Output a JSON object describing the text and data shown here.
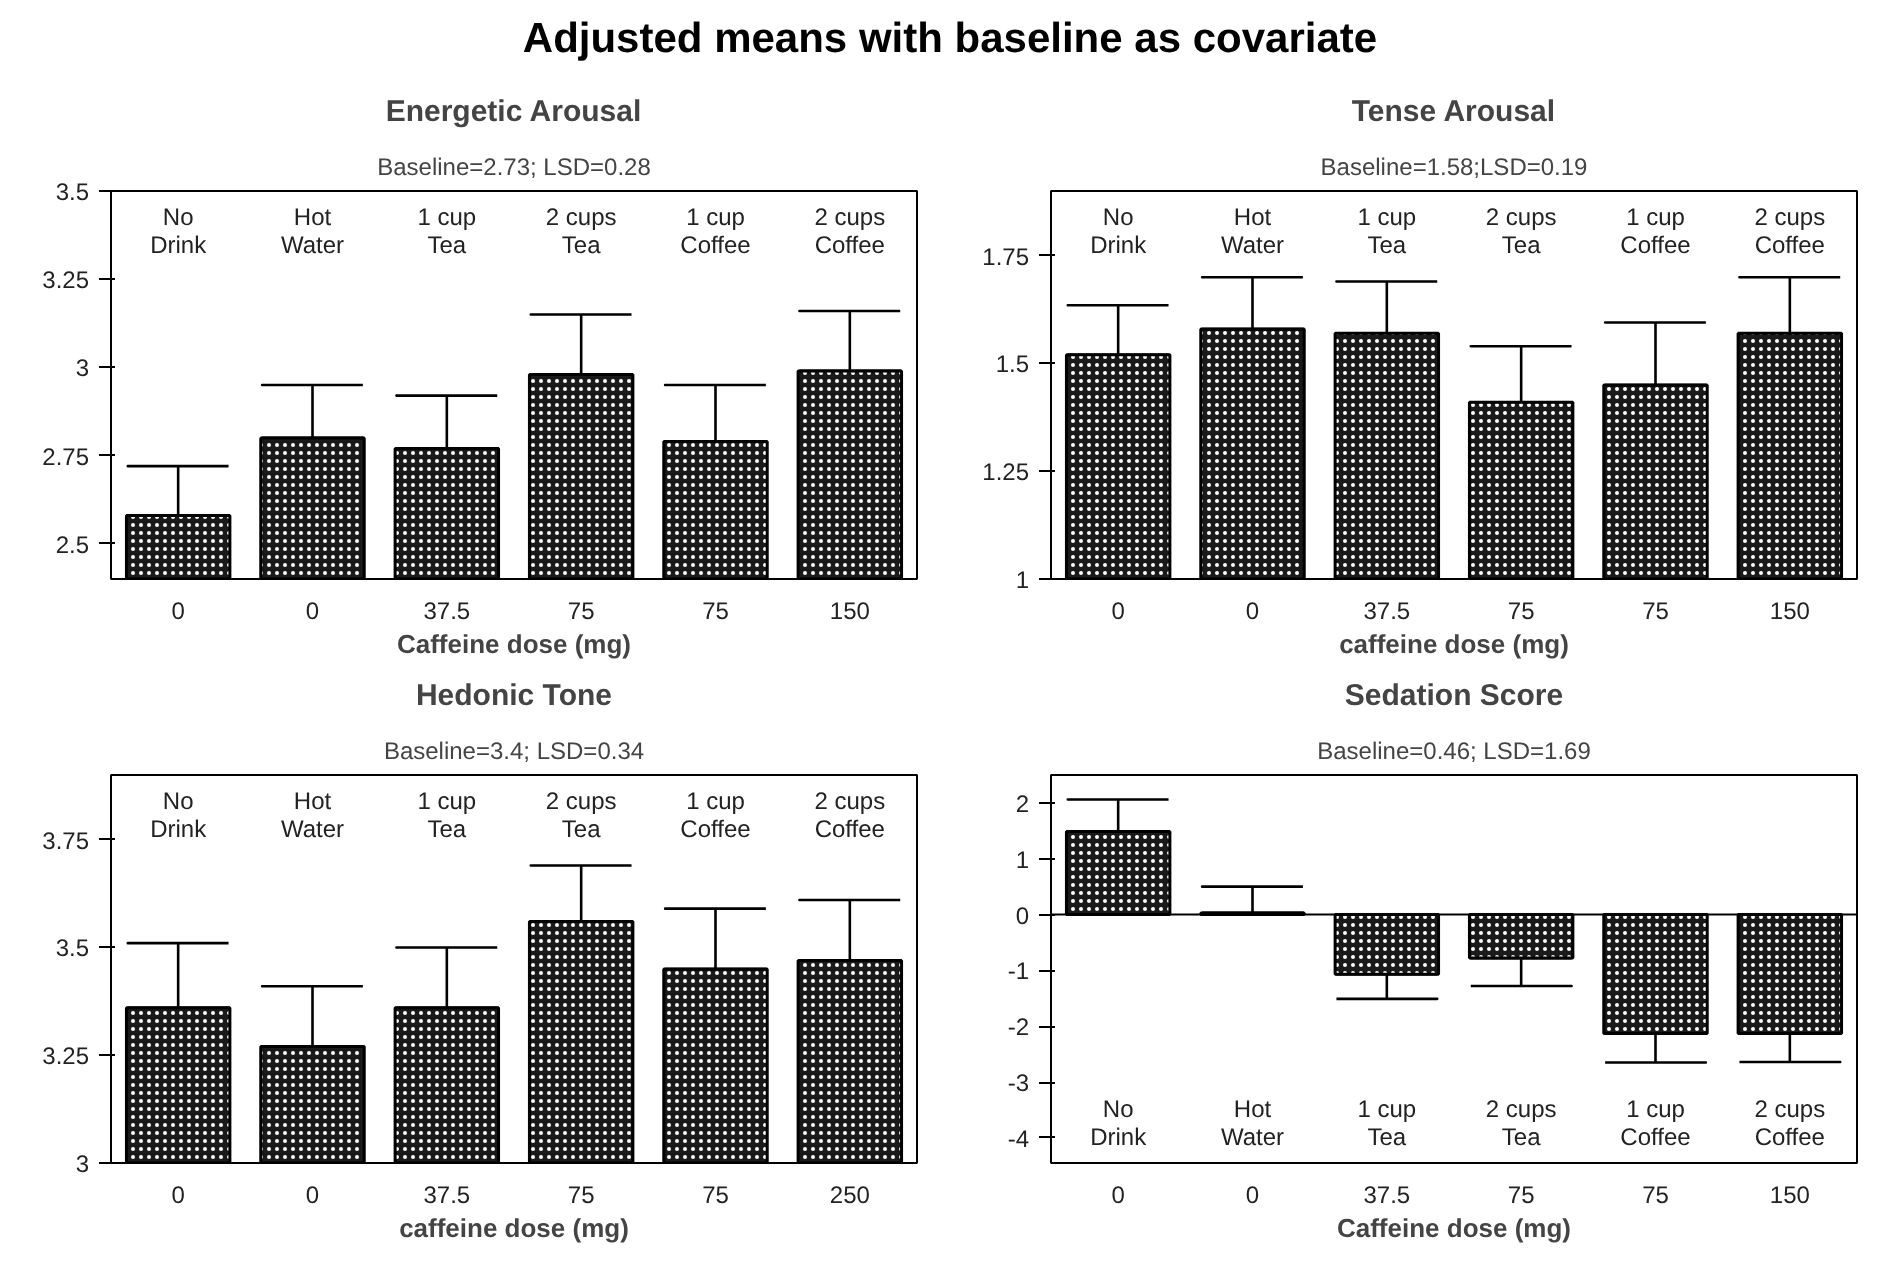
{
  "chart_data": [
    {
      "type": "bar",
      "title": "Energetic Arousal",
      "subtitle": "Baseline=2.73; LSD=0.28",
      "xlabel": "Caffeine dose (mg)",
      "categories": [
        "0",
        "0",
        "37.5",
        "75",
        "75",
        "150"
      ],
      "color": "#1a1a1a",
      "values": [
        2.58,
        2.8,
        2.77,
        2.98,
        2.79,
        2.99
      ],
      "errors": [
        [
          2.58,
          2.72
        ],
        [
          2.8,
          2.95
        ],
        [
          2.77,
          2.92
        ],
        [
          2.98,
          3.15
        ],
        [
          2.79,
          2.95
        ],
        [
          2.99,
          3.16
        ]
      ],
      "ylim": [
        2.4,
        3.5
      ],
      "yticks": [
        2.5,
        2.75,
        3,
        3.25,
        3.5
      ],
      "annotations": [
        "No\nDrink",
        "Hot\nWater",
        "1 cup\nTea",
        "2 cups\nTea",
        "1 cup\nCoffee",
        "2 cups\nCoffee",
        "Adjusted means with baseline as covariate"
      ]
    },
    {
      "type": "bar",
      "title": "Tense Arousal",
      "subtitle": "Baseline=1.58;LSD=0.19",
      "xlabel": "caffeine dose (mg)",
      "categories": [
        "0",
        "0",
        "37.5",
        "75",
        "75",
        "150"
      ],
      "color": "#1a1a1a",
      "values": [
        1.52,
        1.58,
        1.57,
        1.41,
        1.45,
        1.57
      ],
      "errors": [
        [
          1.52,
          1.635
        ],
        [
          1.58,
          1.7
        ],
        [
          1.57,
          1.69
        ],
        [
          1.41,
          1.54
        ],
        [
          1.45,
          1.595
        ],
        [
          1.57,
          1.7
        ]
      ],
      "ylim": [
        1,
        1.9
      ],
      "yticks": [
        1,
        1.25,
        1.5,
        1.75
      ],
      "annotations": [
        "No\nDrink",
        "Hot\nWater",
        "1 cup\nTea",
        "2 cups\nTea",
        "1 cup\nCoffee",
        "2 cups\nCoffee"
      ]
    },
    {
      "type": "bar",
      "title": "Hedonic Tone",
      "subtitle": "Baseline=3.4; LSD=0.34",
      "xlabel": "caffeine dose (mg)",
      "categories": [
        "0",
        "0",
        "37.5",
        "75",
        "75",
        "250"
      ],
      "color": "#1a1a1a",
      "values": [
        3.36,
        3.27,
        3.36,
        3.56,
        3.45,
        3.47
      ],
      "errors": [
        [
          3.36,
          3.51
        ],
        [
          3.27,
          3.41
        ],
        [
          3.36,
          3.5
        ],
        [
          3.56,
          3.69
        ],
        [
          3.45,
          3.59
        ],
        [
          3.47,
          3.61
        ]
      ],
      "ylim": [
        3,
        3.9
      ],
      "yticks": [
        3,
        3.25,
        3.5,
        3.75
      ],
      "annotations": [
        "No\nDrink",
        "Hot\nWater",
        "1 cup\nTea",
        "2 cups\nTea",
        "1 cup\nCoffee",
        "2 cups\nCoffee"
      ]
    },
    {
      "type": "bar",
      "title": "Sedation Score",
      "subtitle": "Baseline=0.46; LSD=1.69",
      "xlabel": "Caffeine dose (mg)",
      "categories": [
        "0",
        "0",
        "37.5",
        "75",
        "75",
        "150"
      ],
      "color": "#1a1a1a",
      "values": [
        1.49,
        0.03,
        -1.07,
        -0.78,
        -2.13,
        -2.13
      ],
      "errors": [
        [
          1.49,
          2.06
        ],
        [
          0.03,
          0.5
        ],
        [
          -1.51,
          -1.07
        ],
        [
          -1.28,
          -0.78
        ],
        [
          -2.65,
          -2.13
        ],
        [
          -2.64,
          -2.13
        ]
      ],
      "ylim": [
        -4.45,
        2.5
      ],
      "yticks": [
        -4,
        -3,
        -2,
        -1,
        0,
        1,
        2
      ],
      "annotations": [
        "No\nDrink",
        "Hot\nWater",
        "1 cup\nTea",
        "2 cups\nTea",
        "1 cup\nCoffee",
        "2 cups\nCoffee"
      ]
    }
  ]
}
